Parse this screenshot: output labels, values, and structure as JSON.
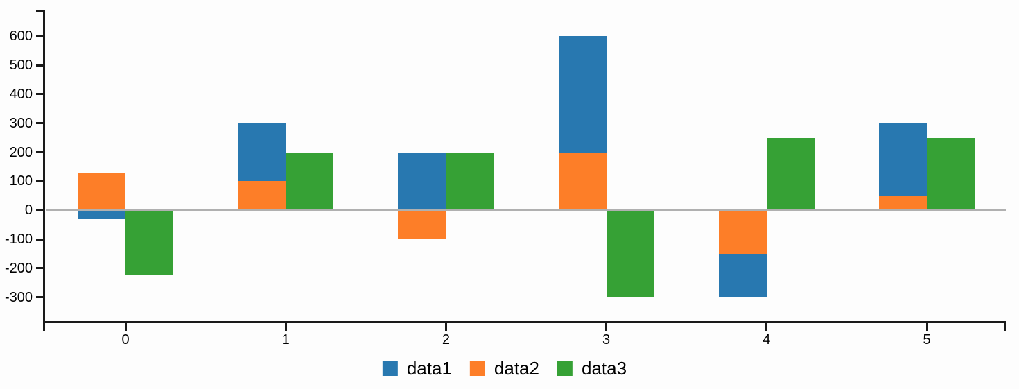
{
  "chart_data": {
    "type": "bar",
    "title": "",
    "xlabel": "",
    "ylabel": "",
    "categories": [
      "0",
      "1",
      "2",
      "3",
      "4",
      "5"
    ],
    "series": [
      {
        "name": "data1",
        "color": "#2878b0",
        "stack": "main",
        "values": [
          -30,
          200,
          200,
          400,
          -150,
          250
        ]
      },
      {
        "name": "data2",
        "color": "#fd7e28",
        "stack": "main",
        "values": [
          130,
          100,
          -100,
          200,
          -150,
          50
        ]
      },
      {
        "name": "data3",
        "color": "#36a135",
        "stack": "side",
        "values": [
          -225,
          200,
          200,
          -300,
          250,
          250
        ]
      }
    ],
    "stacking_note": "data2 drawn from zero, data1 stacked onto data2 when same sign; data3 is a separate bar to the right of the stack",
    "y_ticks": [
      600,
      500,
      400,
      300,
      200,
      100,
      0,
      -100,
      -200,
      -300
    ],
    "ylim": [
      -386,
      690
    ],
    "grid": false,
    "zero_line": true,
    "legend_position": "bottom-center",
    "legend_labels": [
      "data1",
      "data2",
      "data3"
    ],
    "colors": {
      "data1": "#2878b0",
      "data2": "#fd7e28",
      "data3": "#36a135",
      "axis": "#1a1a1a",
      "zero_line": "#b0b0b0",
      "background": "#fdfdfd",
      "text": "#000000"
    }
  }
}
